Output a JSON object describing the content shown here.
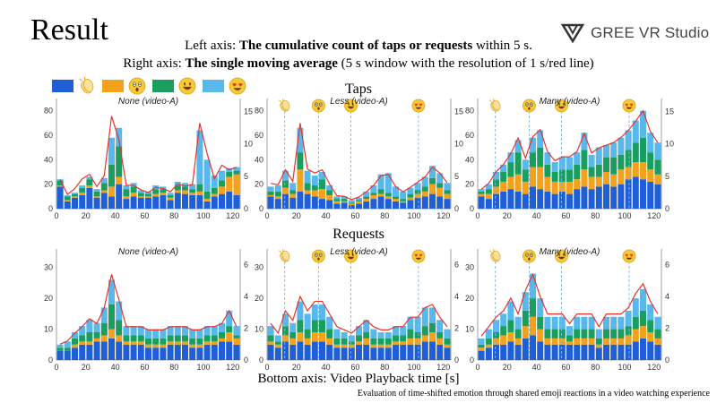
{
  "slide": {
    "title": "Result",
    "logo_text": "GREE VR Studio",
    "left_axis_prefix": "Left axis: ",
    "left_axis_bold": "The cumulative count of taps or requests",
    "left_axis_suffix": " within 5 s.",
    "right_axis_prefix": "Right axis: ",
    "right_axis_bold": "The single moving average",
    "right_axis_suffix": " (5 s window with the resolution of 1 s/red line)",
    "row_taps": "Taps",
    "row_requests": "Requests",
    "bottom_axis": "Bottom axis: Video Playback time [s]",
    "caption": "Evaluation of time-shifted emotion through shared emoji reactions in a video watching experience"
  },
  "legend": [
    {
      "color": "#1f5fd6",
      "icon": "clapping-hands-emoji-icon"
    },
    {
      "color": "#f4a21b",
      "icon": "astonished-face-emoji-icon"
    },
    {
      "color": "#1a9e5f",
      "icon": "grinning-face-emoji-icon"
    },
    {
      "color": "#58b8ec",
      "icon": "heart-eyes-emoji-icon"
    }
  ],
  "colors": {
    "clap": "#1f5fd6",
    "surprise": "#f4a21b",
    "smile": "#1a9e5f",
    "love": "#58b8ec",
    "moving_average": "#e8332a",
    "marker_lines": "#7bbbe6"
  },
  "chart_data": [
    {
      "type": "bar",
      "row": "taps",
      "title": "None (video-A)",
      "xlim": [
        0,
        125
      ],
      "xticks": [
        0,
        20,
        40,
        60,
        80,
        100,
        120
      ],
      "ylim_left": [
        0,
        90
      ],
      "yticks_left": [
        0,
        20,
        40,
        60,
        80
      ],
      "ylim_right": [
        0,
        17
      ],
      "yticks_right": [
        0,
        5,
        10,
        15
      ],
      "emoji_markers": [],
      "series": [
        {
          "name": "clap",
          "values": [
            18,
            6,
            9,
            11,
            17,
            9,
            13,
            10,
            20,
            8,
            10,
            9,
            9,
            10,
            11,
            7,
            13,
            12,
            11,
            11,
            6,
            10,
            12,
            14,
            11
          ]
        },
        {
          "name": "surprise",
          "values": [
            1,
            1,
            1,
            2,
            2,
            1,
            2,
            8,
            6,
            2,
            3,
            1,
            1,
            2,
            2,
            2,
            2,
            3,
            2,
            3,
            2,
            2,
            6,
            12,
            17
          ]
        },
        {
          "name": "smile",
          "values": [
            4,
            3,
            2,
            4,
            5,
            4,
            6,
            18,
            25,
            6,
            5,
            3,
            2,
            4,
            3,
            2,
            4,
            3,
            3,
            6,
            6,
            5,
            5,
            4,
            3
          ]
        },
        {
          "name": "love",
          "values": [
            1,
            1,
            1,
            2,
            2,
            2,
            4,
            22,
            15,
            3,
            3,
            2,
            2,
            3,
            2,
            2,
            3,
            3,
            4,
            44,
            26,
            10,
            8,
            3,
            3
          ]
        }
      ],
      "moving_average": [
        4.5,
        2.2,
        3.1,
        4.6,
        5.3,
        3.4,
        5.1,
        14.3,
        10.6,
        3.6,
        3.6,
        2.9,
        2.5,
        3.3,
        3.1,
        2.6,
        3.8,
        3.5,
        3.7,
        13.2,
        8.5,
        4.6,
        6.7,
        6.0,
        6.4
      ]
    },
    {
      "type": "bar",
      "row": "taps",
      "title": "Less (video-A)",
      "xlim": [
        0,
        125
      ],
      "xticks": [
        0,
        20,
        40,
        60,
        80,
        100,
        120
      ],
      "ylim_left": [
        0,
        90
      ],
      "yticks_left": [
        0,
        20,
        40,
        60,
        80
      ],
      "ylim_right": [
        0,
        17
      ],
      "yticks_right": [
        0,
        5,
        10,
        15
      ],
      "emoji_markers": [
        {
          "icon": "clapping-hands-emoji-icon",
          "x": 12
        },
        {
          "icon": "astonished-face-emoji-icon",
          "x": 35
        },
        {
          "icon": "grinning-face-emoji-icon",
          "x": 57
        },
        {
          "icon": "heart-eyes-emoji-icon",
          "x": 103
        }
      ],
      "series": [
        {
          "name": "clap",
          "values": [
            10,
            8,
            12,
            9,
            14,
            12,
            10,
            8,
            7,
            4,
            5,
            3,
            4,
            6,
            8,
            10,
            8,
            6,
            5,
            7,
            9,
            10,
            12,
            10,
            8
          ]
        },
        {
          "name": "surprise",
          "values": [
            1,
            2,
            5,
            3,
            18,
            3,
            5,
            8,
            4,
            2,
            1,
            1,
            2,
            2,
            3,
            2,
            2,
            2,
            1,
            2,
            3,
            4,
            8,
            7,
            4
          ]
        },
        {
          "name": "smile",
          "values": [
            3,
            4,
            6,
            3,
            14,
            6,
            4,
            8,
            4,
            2,
            2,
            1,
            1,
            2,
            2,
            4,
            3,
            2,
            2,
            3,
            3,
            4,
            5,
            4,
            3
          ]
        },
        {
          "name": "love",
          "values": [
            4,
            5,
            8,
            6,
            20,
            10,
            8,
            6,
            4,
            2,
            2,
            2,
            2,
            4,
            6,
            12,
            16,
            8,
            6,
            5,
            6,
            8,
            10,
            8,
            6
          ]
        }
      ],
      "moving_average": [
        3.9,
        3.7,
        6.0,
        4.2,
        13.2,
        6.1,
        5.5,
        6.0,
        3.8,
        2.0,
        1.9,
        1.4,
        1.8,
        2.6,
        3.6,
        5.1,
        5.3,
        3.4,
        2.6,
        3.3,
        4.1,
        4.9,
        6.4,
        5.5,
        4.0
      ]
    },
    {
      "type": "bar",
      "row": "taps",
      "title": "Many (video-A)",
      "xlim": [
        0,
        125
      ],
      "xticks": [
        0,
        20,
        40,
        60,
        80,
        100,
        120
      ],
      "ylim_left": [
        0,
        90
      ],
      "yticks_left": [
        0,
        20,
        40,
        60,
        80
      ],
      "ylim_right": [
        0,
        17
      ],
      "yticks_right": [
        0,
        5,
        10,
        15
      ],
      "emoji_markers": [
        {
          "icon": "clapping-hands-emoji-icon",
          "x": 12
        },
        {
          "icon": "astonished-face-emoji-icon",
          "x": 35
        },
        {
          "icon": "grinning-face-emoji-icon",
          "x": 57
        },
        {
          "icon": "heart-eyes-emoji-icon",
          "x": 103
        }
      ],
      "series": [
        {
          "name": "clap",
          "values": [
            10,
            8,
            12,
            14,
            16,
            14,
            12,
            18,
            16,
            14,
            12,
            14,
            12,
            16,
            18,
            16,
            18,
            20,
            18,
            20,
            24,
            26,
            24,
            22,
            20
          ]
        },
        {
          "name": "surprise",
          "values": [
            2,
            4,
            6,
            8,
            10,
            14,
            10,
            16,
            18,
            12,
            10,
            8,
            10,
            8,
            14,
            10,
            8,
            10,
            10,
            12,
            10,
            12,
            14,
            10,
            8
          ]
        },
        {
          "name": "smile",
          "values": [
            2,
            4,
            6,
            8,
            12,
            18,
            10,
            12,
            16,
            10,
            8,
            10,
            10,
            12,
            16,
            8,
            10,
            12,
            14,
            12,
            14,
            16,
            20,
            14,
            12
          ]
        },
        {
          "name": "love",
          "values": [
            2,
            4,
            6,
            6,
            8,
            10,
            8,
            12,
            14,
            10,
            8,
            10,
            10,
            10,
            14,
            10,
            14,
            10,
            12,
            14,
            16,
            18,
            22,
            16,
            14
          ]
        }
      ],
      "moving_average": [
        3.0,
        3.9,
        5.7,
        6.8,
        8.5,
        10.9,
        7.8,
        11.1,
        12.2,
        8.8,
        7.4,
        8.0,
        8.0,
        8.8,
        11.6,
        8.6,
        9.4,
        9.8,
        10.2,
        11.0,
        12.1,
        13.5,
        15.1,
        11.9,
        10.2
      ]
    },
    {
      "type": "bar",
      "row": "requests",
      "title": "None (video-A)",
      "xlim": [
        0,
        125
      ],
      "xticks": [
        0,
        20,
        40,
        60,
        80,
        100,
        120
      ],
      "ylim_left": [
        0,
        36
      ],
      "yticks_left": [
        0,
        10,
        20,
        30
      ],
      "ylim_right": [
        0,
        7
      ],
      "yticks_right": [
        0,
        2,
        4,
        6
      ],
      "emoji_markers": [],
      "series": [
        {
          "name": "clap",
          "values": [
            3,
            3,
            4,
            5,
            5,
            6,
            6,
            7,
            6,
            5,
            5,
            5,
            4,
            4,
            4,
            5,
            5,
            5,
            4,
            4,
            5,
            5,
            6,
            6,
            5
          ]
        },
        {
          "name": "surprise",
          "values": [
            0,
            0,
            1,
            1,
            1,
            1,
            2,
            3,
            2,
            1,
            1,
            1,
            1,
            1,
            1,
            1,
            1,
            1,
            1,
            1,
            1,
            1,
            1,
            3,
            2
          ]
        },
        {
          "name": "smile",
          "values": [
            1,
            1,
            2,
            2,
            3,
            2,
            4,
            8,
            5,
            2,
            2,
            2,
            2,
            2,
            2,
            2,
            2,
            2,
            2,
            2,
            2,
            2,
            2,
            2,
            1
          ]
        },
        {
          "name": "love",
          "values": [
            1,
            2,
            2,
            3,
            4,
            3,
            5,
            8,
            6,
            3,
            3,
            3,
            3,
            3,
            3,
            3,
            3,
            3,
            3,
            3,
            3,
            3,
            3,
            5,
            3
          ]
        }
      ],
      "moving_average": [
        1.0,
        1.2,
        1.7,
        2.1,
        2.6,
        2.3,
        3.3,
        5.4,
        3.8,
        2.1,
        2.1,
        2.1,
        1.9,
        1.9,
        1.9,
        2.1,
        2.1,
        2.1,
        1.9,
        1.9,
        2.1,
        2.1,
        2.3,
        3.1,
        2.1
      ]
    },
    {
      "type": "bar",
      "row": "requests",
      "title": "Less (video-A)",
      "xlim": [
        0,
        125
      ],
      "xticks": [
        0,
        20,
        40,
        60,
        80,
        100,
        120
      ],
      "ylim_left": [
        0,
        36
      ],
      "yticks_left": [
        0,
        10,
        20,
        30
      ],
      "ylim_right": [
        0,
        7
      ],
      "yticks_right": [
        0,
        2,
        4,
        6
      ],
      "emoji_markers": [
        {
          "icon": "clapping-hands-emoji-icon",
          "x": 12
        },
        {
          "icon": "astonished-face-emoji-icon",
          "x": 35
        },
        {
          "icon": "grinning-face-emoji-icon",
          "x": 57
        },
        {
          "icon": "heart-eyes-emoji-icon",
          "x": 103
        }
      ],
      "series": [
        {
          "name": "clap",
          "values": [
            5,
            4,
            6,
            5,
            6,
            5,
            6,
            6,
            5,
            4,
            4,
            4,
            5,
            5,
            4,
            4,
            4,
            5,
            5,
            5,
            5,
            6,
            6,
            5,
            4
          ]
        },
        {
          "name": "surprise",
          "values": [
            1,
            1,
            2,
            2,
            3,
            2,
            3,
            3,
            2,
            1,
            1,
            1,
            1,
            2,
            1,
            1,
            1,
            1,
            1,
            2,
            2,
            2,
            3,
            2,
            1
          ]
        },
        {
          "name": "smile",
          "values": [
            2,
            1,
            3,
            2,
            4,
            3,
            4,
            4,
            3,
            2,
            2,
            1,
            2,
            2,
            2,
            2,
            2,
            2,
            2,
            3,
            2,
            3,
            3,
            2,
            2
          ]
        },
        {
          "name": "love",
          "values": [
            3,
            2,
            4,
            3,
            6,
            5,
            5,
            5,
            4,
            3,
            2,
            2,
            3,
            4,
            3,
            2,
            2,
            3,
            3,
            4,
            5,
            6,
            5,
            4,
            3
          ]
        }
      ],
      "moving_average": [
        2.3,
        1.7,
        3.1,
        2.5,
        4.0,
        3.1,
        3.7,
        3.7,
        2.9,
        2.1,
        1.9,
        1.7,
        2.1,
        2.5,
        2.1,
        1.9,
        1.9,
        2.1,
        2.1,
        2.7,
        2.7,
        3.3,
        3.5,
        2.7,
        2.1
      ]
    },
    {
      "type": "bar",
      "row": "requests",
      "title": "Many (video-A)",
      "xlim": [
        0,
        125
      ],
      "xticks": [
        0,
        20,
        40,
        60,
        80,
        100,
        120
      ],
      "ylim_left": [
        0,
        36
      ],
      "yticks_left": [
        0,
        10,
        20,
        30
      ],
      "ylim_right": [
        0,
        7
      ],
      "yticks_right": [
        0,
        2,
        4,
        6
      ],
      "emoji_markers": [
        {
          "icon": "clapping-hands-emoji-icon",
          "x": 12
        },
        {
          "icon": "astonished-face-emoji-icon",
          "x": 35
        },
        {
          "icon": "grinning-face-emoji-icon",
          "x": 57
        },
        {
          "icon": "heart-eyes-emoji-icon",
          "x": 103
        }
      ],
      "series": [
        {
          "name": "clap",
          "values": [
            3,
            4,
            5,
            5,
            6,
            5,
            7,
            8,
            6,
            5,
            5,
            5,
            5,
            5,
            5,
            5,
            4,
            5,
            5,
            5,
            5,
            6,
            7,
            6,
            5
          ]
        },
        {
          "name": "surprise",
          "values": [
            1,
            1,
            2,
            3,
            3,
            2,
            4,
            6,
            4,
            2,
            2,
            2,
            1,
            2,
            2,
            2,
            1,
            2,
            2,
            2,
            3,
            4,
            4,
            3,
            2
          ]
        },
        {
          "name": "smile",
          "values": [
            1,
            2,
            2,
            3,
            4,
            3,
            5,
            6,
            4,
            3,
            3,
            3,
            2,
            3,
            3,
            3,
            2,
            3,
            3,
            3,
            3,
            4,
            5,
            4,
            3
          ]
        },
        {
          "name": "love",
          "values": [
            2,
            3,
            4,
            4,
            6,
            4,
            6,
            8,
            6,
            4,
            4,
            4,
            3,
            4,
            4,
            4,
            3,
            4,
            4,
            4,
            5,
            6,
            7,
            5,
            4
          ]
        }
      ],
      "moving_average": [
        1.5,
        2.1,
        2.7,
        3.1,
        3.9,
        2.9,
        4.4,
        5.4,
        4.0,
        2.9,
        2.9,
        2.9,
        2.3,
        2.9,
        2.9,
        2.9,
        2.1,
        2.9,
        2.9,
        2.9,
        3.3,
        4.2,
        4.8,
        3.7,
        2.9
      ]
    }
  ]
}
